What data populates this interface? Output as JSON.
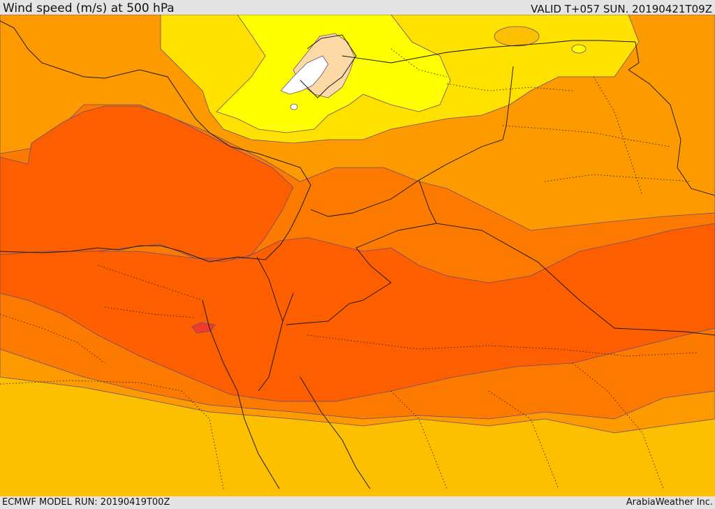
{
  "header": {
    "title": "Wind speed (m/s) at 500 hPa",
    "valid": "VALID T+057 SUN. 20190421T09Z"
  },
  "footer": {
    "model_run": "ECMWF MODEL RUN: 20190419T00Z",
    "credit": "ArabiaWeather Inc."
  },
  "map": {
    "variable": "wind speed",
    "units": "m/s",
    "pressure_level": "500 hPa",
    "shading_colors": {
      "weakest": "#ffffff",
      "very_light": "#fdd9a6",
      "light": "#ffff00",
      "light_moderate": "#ffe100",
      "moderate": "#fdc000",
      "moderate_strong": "#fd9a00",
      "strong": "#fd7a00",
      "very_strong": "#fd5f00",
      "peak": "#f03a2a"
    },
    "overlays": [
      "coastlines",
      "country-borders",
      "region-borders-dotted",
      "contour-lines"
    ]
  }
}
